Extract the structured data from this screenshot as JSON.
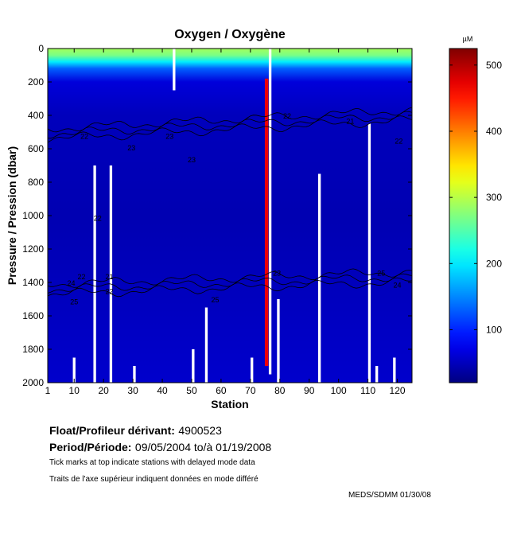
{
  "chart_data": {
    "type": "heatmap",
    "title": "Oxygen / Oxygène",
    "xlabel": "Station",
    "ylabel": "Pressure / Pression (dbar)",
    "colorbar_unit": "µM",
    "xlim": [
      1,
      125
    ],
    "ylim": [
      2000,
      0
    ],
    "x_ticks": [
      1,
      10,
      20,
      30,
      40,
      50,
      60,
      70,
      80,
      90,
      100,
      110,
      120
    ],
    "y_ticks": [
      0,
      200,
      400,
      600,
      800,
      1000,
      1200,
      1400,
      1600,
      1800,
      2000
    ],
    "colorbar_range": [
      20,
      525
    ],
    "colorbar_ticks": [
      100,
      200,
      300,
      400,
      500
    ],
    "colormap": "jet",
    "profile": [
      {
        "p": 0,
        "v": 290
      },
      {
        "p": 40,
        "v": 270
      },
      {
        "p": 80,
        "v": 200
      },
      {
        "p": 120,
        "v": 130
      },
      {
        "p": 200,
        "v": 65
      },
      {
        "p": 400,
        "v": 50
      },
      {
        "p": 1000,
        "v": 45
      },
      {
        "p": 1400,
        "v": 50
      },
      {
        "p": 2000,
        "v": 58
      }
    ],
    "anomalous_station": {
      "x": 75.5,
      "pmin": 180,
      "pmax": 1900,
      "v": 470
    },
    "missing_columns": [
      {
        "x": 17,
        "pmin": 700,
        "pmax": 2000
      },
      {
        "x": 22.5,
        "pmin": 700,
        "pmax": 2000
      },
      {
        "x": 55,
        "pmin": 1550,
        "pmax": 2000
      },
      {
        "x": 93.5,
        "pmin": 750,
        "pmax": 2000
      },
      {
        "x": 110.5,
        "pmin": 450,
        "pmax": 2000
      },
      {
        "x": 79.5,
        "pmin": 1500,
        "pmax": 2000
      },
      {
        "x": 50.5,
        "pmin": 1800,
        "pmax": 2000
      },
      {
        "x": 44,
        "pmin": 0,
        "pmax": 250
      },
      {
        "x": 76.7,
        "pmin": 0,
        "pmax": 1950
      },
      {
        "x": 10,
        "pmin": 1850,
        "pmax": 2000
      },
      {
        "x": 30.5,
        "pmin": 1900,
        "pmax": 2000
      },
      {
        "x": 70.5,
        "pmin": 1850,
        "pmax": 2000
      },
      {
        "x": 113,
        "pmin": 1900,
        "pmax": 2000
      },
      {
        "x": 119,
        "pmin": 1850,
        "pmax": 2000
      }
    ],
    "contour_bands": [
      {
        "label": "22",
        "base": 510
      },
      {
        "label": "24",
        "base": 1440
      }
    ],
    "contour_label_positions": [
      {
        "text": "22",
        "x": 13.5,
        "p": 540
      },
      {
        "text": "23",
        "x": 29.5,
        "p": 610
      },
      {
        "text": "23",
        "x": 42.5,
        "p": 540
      },
      {
        "text": "23",
        "x": 50,
        "p": 680
      },
      {
        "text": "22",
        "x": 82.5,
        "p": 420
      },
      {
        "text": "21",
        "x": 104,
        "p": 450
      },
      {
        "text": "22",
        "x": 120.5,
        "p": 570
      },
      {
        "text": "22",
        "x": 18,
        "p": 1030
      },
      {
        "text": "22",
        "x": 12.5,
        "p": 1380
      },
      {
        "text": "24",
        "x": 9,
        "p": 1420
      },
      {
        "text": "25",
        "x": 10,
        "p": 1530
      },
      {
        "text": "21",
        "x": 22,
        "p": 1380
      },
      {
        "text": "22",
        "x": 22,
        "p": 1470
      },
      {
        "text": "23",
        "x": 79,
        "p": 1360
      },
      {
        "text": "25",
        "x": 58,
        "p": 1520
      },
      {
        "text": "25",
        "x": 114.5,
        "p": 1360
      },
      {
        "text": "24",
        "x": 120,
        "p": 1430
      }
    ]
  },
  "info": {
    "float_label": "Float/Profileur dérivant:",
    "float_value": "4900523",
    "period_label": "Period/Période:",
    "period_value": "09/05/2004  to/à  01/19/2008",
    "note_en": "Tick marks at top indicate stations with delayed mode data",
    "note_fr": "Traits de l'axe supérieur indiquent données en mode différé",
    "credit": "MEDS/SDMM  01/30/08"
  }
}
